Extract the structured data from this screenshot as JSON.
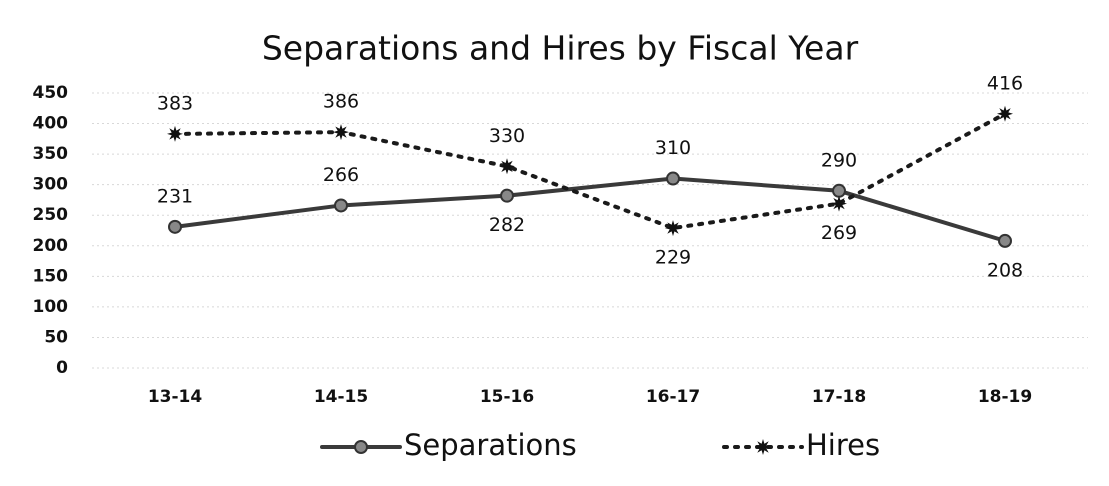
{
  "chart_data": {
    "type": "line",
    "title": "Separations and Hires by Fiscal Year",
    "categories": [
      "13-14",
      "14-15",
      "15-16",
      "16-17",
      "17-18",
      "18-19"
    ],
    "series": [
      {
        "name": "Separations",
        "color": "#3a3a3a",
        "values": [
          231,
          266,
          282,
          310,
          290,
          208
        ]
      },
      {
        "name": "Hires",
        "color": "#1a1a1a",
        "values": [
          383,
          386,
          330,
          229,
          269,
          416
        ]
      }
    ],
    "ylim": [
      0,
      450
    ],
    "yticks": [
      0,
      50,
      100,
      150,
      200,
      250,
      300,
      350,
      400,
      450
    ],
    "grid": true
  }
}
